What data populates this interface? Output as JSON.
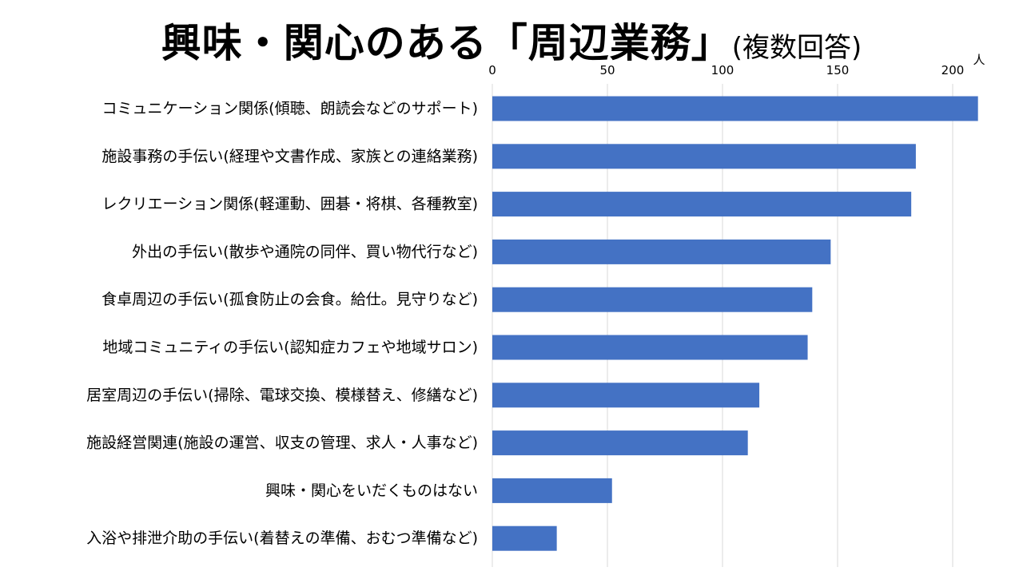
{
  "title": {
    "main": "興味・関心のある「周辺業務」",
    "sub": "(複数回答)"
  },
  "chart_data": {
    "type": "bar",
    "orientation": "horizontal",
    "title": "興味・関心のある「周辺業務」(複数回答)",
    "xlabel": "",
    "ylabel": "",
    "unit": "人",
    "xlim": [
      0,
      210
    ],
    "xticks": [
      0,
      50,
      100,
      150,
      200
    ],
    "grid": true,
    "bar_color": "#4472C4",
    "grid_color": "#D9D9D9",
    "categories": [
      "コミュニケーション関係(傾聴、朗読会などのサポート)",
      "施設事務の手伝い(経理や文書作成、家族との連絡業務)",
      "レクリエーション関係(軽運動、囲碁・将棋、各種教室)",
      "外出の手伝い(散歩や通院の同伴、買い物代行など)",
      "食卓周辺の手伝い(孤食防止の会食。給仕。見守りなど)",
      "地域コミュニティの手伝い(認知症カフェや地域サロン)",
      "居室周辺の手伝い(掃除、電球交換、模様替え、修繕など)",
      "施設経営関連(施設の運営、収支の管理、求人・人事など)",
      "興味・関心をいだくものはない",
      "入浴や排泄介助の手伝い(着替えの準備、おむつ準備など)"
    ],
    "values": [
      211,
      184,
      182,
      147,
      139,
      137,
      116,
      111,
      52,
      28
    ]
  }
}
